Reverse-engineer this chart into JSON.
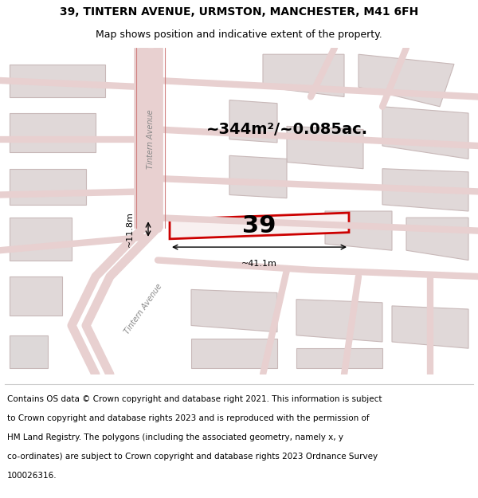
{
  "title_line1": "39, TINTERN AVENUE, URMSTON, MANCHESTER, M41 6FH",
  "title_line2": "Map shows position and indicative extent of the property.",
  "area_text": "~344m²/~0.085ac.",
  "property_number": "39",
  "dim_width": "~41.1m",
  "dim_height": "~11.8m",
  "footer_text": "Contains OS data © Crown copyright and database right 2021. This information is subject to Crown copyright and database rights 2023 and is reproduced with the permission of HM Land Registry. The polygons (including the associated geometry, namely x, y co-ordinates) are subject to Crown copyright and database rights 2023 Ordnance Survey 100026316.",
  "bg_color": "#f5f0f0",
  "map_bg": "#f8f4f4",
  "road_color": "#e8d0d0",
  "building_fill": "#e0d8d8",
  "building_edge": "#c8b8b8",
  "property_fill": "#f8f0f0",
  "property_edge": "#cc0000",
  "road_label1": "Tintern Avenue",
  "road_label2": "Tintern Avenue",
  "title_fontsize": 10,
  "subtitle_fontsize": 9,
  "footer_fontsize": 7.5
}
